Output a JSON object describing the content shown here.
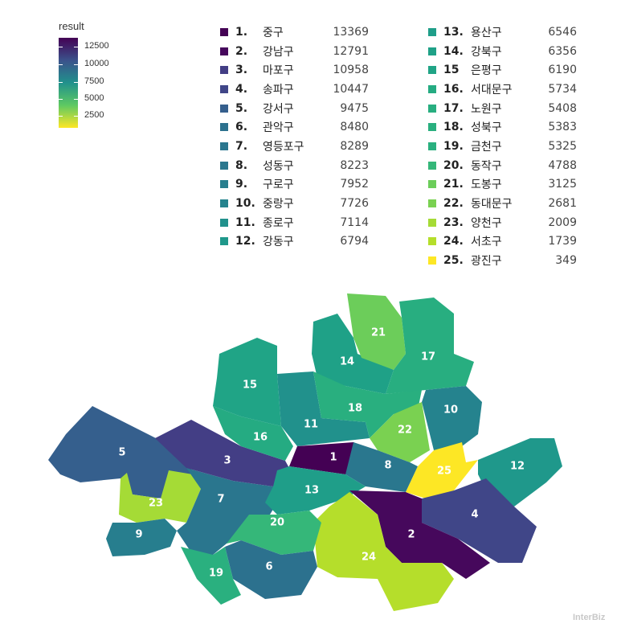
{
  "legend": {
    "title": "result",
    "ticks": [
      "12500",
      "10000",
      "7500",
      "5000",
      "2500"
    ],
    "colors": {
      "max": "#440154",
      "mid": "#21918c",
      "min": "#fde725"
    }
  },
  "ranking_left": [
    {
      "rank": "1.",
      "name": "중구",
      "value": "13369",
      "color": "#440154"
    },
    {
      "rank": "2.",
      "name": "강남구",
      "value": "12791",
      "color": "#46085c"
    },
    {
      "rank": "3.",
      "name": "마포구",
      "value": "10958",
      "color": "#433e85"
    },
    {
      "rank": "4.",
      "name": "송파구",
      "value": "10447",
      "color": "#404688"
    },
    {
      "rank": "5.",
      "name": "강서구",
      "value": "9475",
      "color": "#355f8d"
    },
    {
      "rank": "6.",
      "name": "관악구",
      "value": "8480",
      "color": "#2c718e"
    },
    {
      "rank": "7.",
      "name": "영등포구",
      "value": "8289",
      "color": "#2a768e"
    },
    {
      "rank": "8.",
      "name": "성동구",
      "value": "8223",
      "color": "#2a778e"
    },
    {
      "rank": "9.",
      "name": "구로구",
      "value": "7952",
      "color": "#277e8e"
    },
    {
      "rank": "10.",
      "name": "중랑구",
      "value": "7726",
      "color": "#25838e"
    },
    {
      "rank": "11.",
      "name": "종로구",
      "value": "7114",
      "color": "#21918c"
    },
    {
      "rank": "12.",
      "name": "강동구",
      "value": "6794",
      "color": "#1f988b"
    }
  ],
  "ranking_right": [
    {
      "rank": "13.",
      "name": "용산구",
      "value": "6546",
      "color": "#1f9e89"
    },
    {
      "rank": "14.",
      "name": "강북구",
      "value": "6356",
      "color": "#1fa187"
    },
    {
      "rank": "15",
      "name": "은평구",
      "value": "6190",
      "color": "#20a486"
    },
    {
      "rank": "16.",
      "name": "서대문구",
      "value": "5734",
      "color": "#25ab82"
    },
    {
      "rank": "17.",
      "name": "노원구",
      "value": "5408",
      "color": "#28ae80"
    },
    {
      "rank": "18.",
      "name": "성북구",
      "value": "5383",
      "color": "#29af7f"
    },
    {
      "rank": "19.",
      "name": "금천구",
      "value": "5325",
      "color": "#2ab07f"
    },
    {
      "rank": "20.",
      "name": "동작구",
      "value": "4788",
      "color": "#35b779"
    },
    {
      "rank": "21.",
      "name": "도봉구",
      "value": "3125",
      "color": "#6ccd5a"
    },
    {
      "rank": "22.",
      "name": "동대문구",
      "value": "2681",
      "color": "#7ad151"
    },
    {
      "rank": "23.",
      "name": "양천구",
      "value": "2009",
      "color": "#a5db36"
    },
    {
      "rank": "24.",
      "name": "서초구",
      "value": "1739",
      "color": "#b5de2b"
    },
    {
      "rank": "25.",
      "name": "광진구",
      "value": "349",
      "color": "#fde725"
    }
  ],
  "map_labels": [
    "1",
    "2",
    "3",
    "4",
    "5",
    "6",
    "7",
    "8",
    "9",
    "10",
    "11",
    "12",
    "13",
    "14",
    "15",
    "16",
    "17",
    "18",
    "19",
    "20",
    "21",
    "22",
    "23",
    "24",
    "25"
  ],
  "watermark": "InterBiz"
}
